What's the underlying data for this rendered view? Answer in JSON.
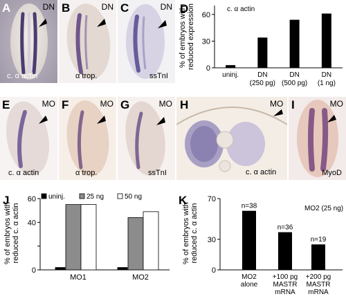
{
  "figure": {
    "panels": {
      "A": {
        "letter": "A",
        "tag": "DN",
        "caption": "c. α actin"
      },
      "B": {
        "letter": "B",
        "tag": "DN",
        "caption": "α trop."
      },
      "C": {
        "letter": "C",
        "tag": "DN",
        "caption": "ssTnI"
      },
      "D": {
        "letter": "D"
      },
      "E": {
        "letter": "E",
        "tag": "MO",
        "caption": "c. α actin"
      },
      "F": {
        "letter": "F",
        "tag": "MO",
        "caption": "α trop."
      },
      "G": {
        "letter": "G",
        "tag": "MO",
        "caption": "ssTnI"
      },
      "H": {
        "letter": "H",
        "tag": "MO",
        "caption": "c. α actin"
      },
      "I": {
        "letter": "I",
        "tag": "MO",
        "caption": "MyoD"
      },
      "J": {
        "letter": "J"
      },
      "K": {
        "letter": "K"
      }
    }
  },
  "chart_data": [
    {
      "id": "D",
      "type": "bar",
      "title": "c. α actin",
      "ylabel": "% of embryos with reduced expression",
      "ylim": [
        0,
        70
      ],
      "yticks": [
        0,
        30,
        60
      ],
      "ytick_labels": [
        "0",
        "30",
        "60"
      ],
      "categories": [
        [
          "uninj."
        ],
        [
          "DN",
          "(250 pg)"
        ],
        [
          "DN",
          "(500 pg)"
        ],
        [
          "DN",
          "(1 ng)"
        ]
      ],
      "values": [
        3,
        34,
        54,
        61
      ],
      "bar_color": "#000000"
    },
    {
      "id": "J",
      "type": "bar",
      "ylabel": "% of embryos with reduced c. α actin",
      "ylim": [
        0,
        60
      ],
      "yticks": [
        0,
        20,
        40,
        60
      ],
      "ytick_labels": [
        "0",
        "",
        "40",
        ""
      ],
      "ytick_top_label": "60",
      "categories": [
        "MO1",
        "MO2"
      ],
      "legend": {
        "placement": "top",
        "entries": [
          "uninj.",
          "25 ng",
          "50 ng"
        ]
      },
      "series": [
        {
          "name": "uninj.",
          "values": [
            2,
            2
          ],
          "color": "#000000"
        },
        {
          "name": "25 ng",
          "values": [
            55,
            44
          ],
          "color": "#8c8c8c"
        },
        {
          "name": "50 ng",
          "values": [
            55,
            49
          ],
          "color": "#ffffff"
        }
      ]
    },
    {
      "id": "K",
      "type": "bar",
      "title": "MO2 (25 ng)",
      "ylabel": "% of embryos with reduced c. α actin",
      "ylim": [
        0,
        70
      ],
      "yticks": [
        0,
        30,
        70
      ],
      "ytick_labels": [
        "0",
        "30",
        "70"
      ],
      "categories": [
        [
          "MO2",
          "alone"
        ],
        [
          "+100 pg",
          "MASTR",
          "mRNA"
        ],
        [
          "+200 pg",
          "MASTR",
          "mRNA"
        ]
      ],
      "values": [
        58,
        37,
        25
      ],
      "annotations": [
        "n=38",
        "n=36",
        "n=19"
      ],
      "bar_color": "#000000"
    }
  ]
}
